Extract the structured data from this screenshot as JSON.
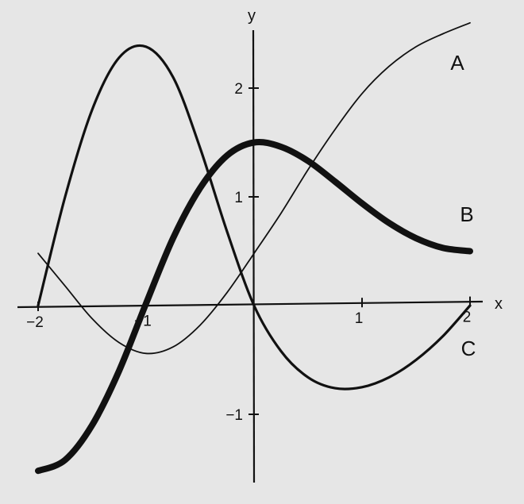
{
  "chart_data": {
    "type": "line",
    "xlabel": "x",
    "ylabel": "y",
    "xlim": [
      -2,
      2
    ],
    "ylim": [
      -1.6,
      2.6
    ],
    "x_ticks": [
      -2,
      -1,
      1,
      2
    ],
    "x_tick_labels": [
      "−2",
      "−1",
      "1",
      "2"
    ],
    "y_ticks": [
      -1,
      1,
      2
    ],
    "y_tick_labels": [
      "−1",
      "1",
      "2"
    ],
    "grid": false,
    "legend": "none",
    "series": [
      {
        "name": "A",
        "style": "thin",
        "color": "#111111",
        "x": [
          -2,
          -1.75,
          -1.5,
          -1.25,
          -1,
          -0.75,
          -0.5,
          -0.25,
          0,
          0.25,
          0.5,
          0.75,
          1,
          1.25,
          1.5,
          1.75,
          2
        ],
        "y": [
          0.48,
          0.18,
          -0.12,
          -0.34,
          -0.44,
          -0.38,
          -0.18,
          0.12,
          0.48,
          0.85,
          1.25,
          1.62,
          1.95,
          2.2,
          2.38,
          2.5,
          2.6
        ]
      },
      {
        "name": "B",
        "style": "thick",
        "color": "#111111",
        "x": [
          -2,
          -1.75,
          -1.5,
          -1.25,
          -1,
          -0.75,
          -0.5,
          -0.25,
          0,
          0.25,
          0.5,
          0.75,
          1,
          1.25,
          1.5,
          1.75,
          2
        ],
        "y": [
          -1.52,
          -1.42,
          -1.1,
          -0.6,
          0.02,
          0.62,
          1.08,
          1.38,
          1.5,
          1.46,
          1.33,
          1.14,
          0.94,
          0.76,
          0.62,
          0.53,
          0.5
        ]
      },
      {
        "name": "C",
        "style": "medium",
        "color": "#111111",
        "x": [
          -2,
          -1.75,
          -1.5,
          -1.25,
          -1,
          -0.75,
          -0.5,
          -0.25,
          0,
          0.25,
          0.5,
          0.75,
          1,
          1.25,
          1.5,
          1.75,
          2
        ],
        "y": [
          0,
          1.0,
          1.8,
          2.28,
          2.38,
          2.1,
          1.45,
          0.68,
          0,
          -0.42,
          -0.66,
          -0.76,
          -0.75,
          -0.66,
          -0.5,
          -0.28,
          0
        ]
      }
    ]
  }
}
